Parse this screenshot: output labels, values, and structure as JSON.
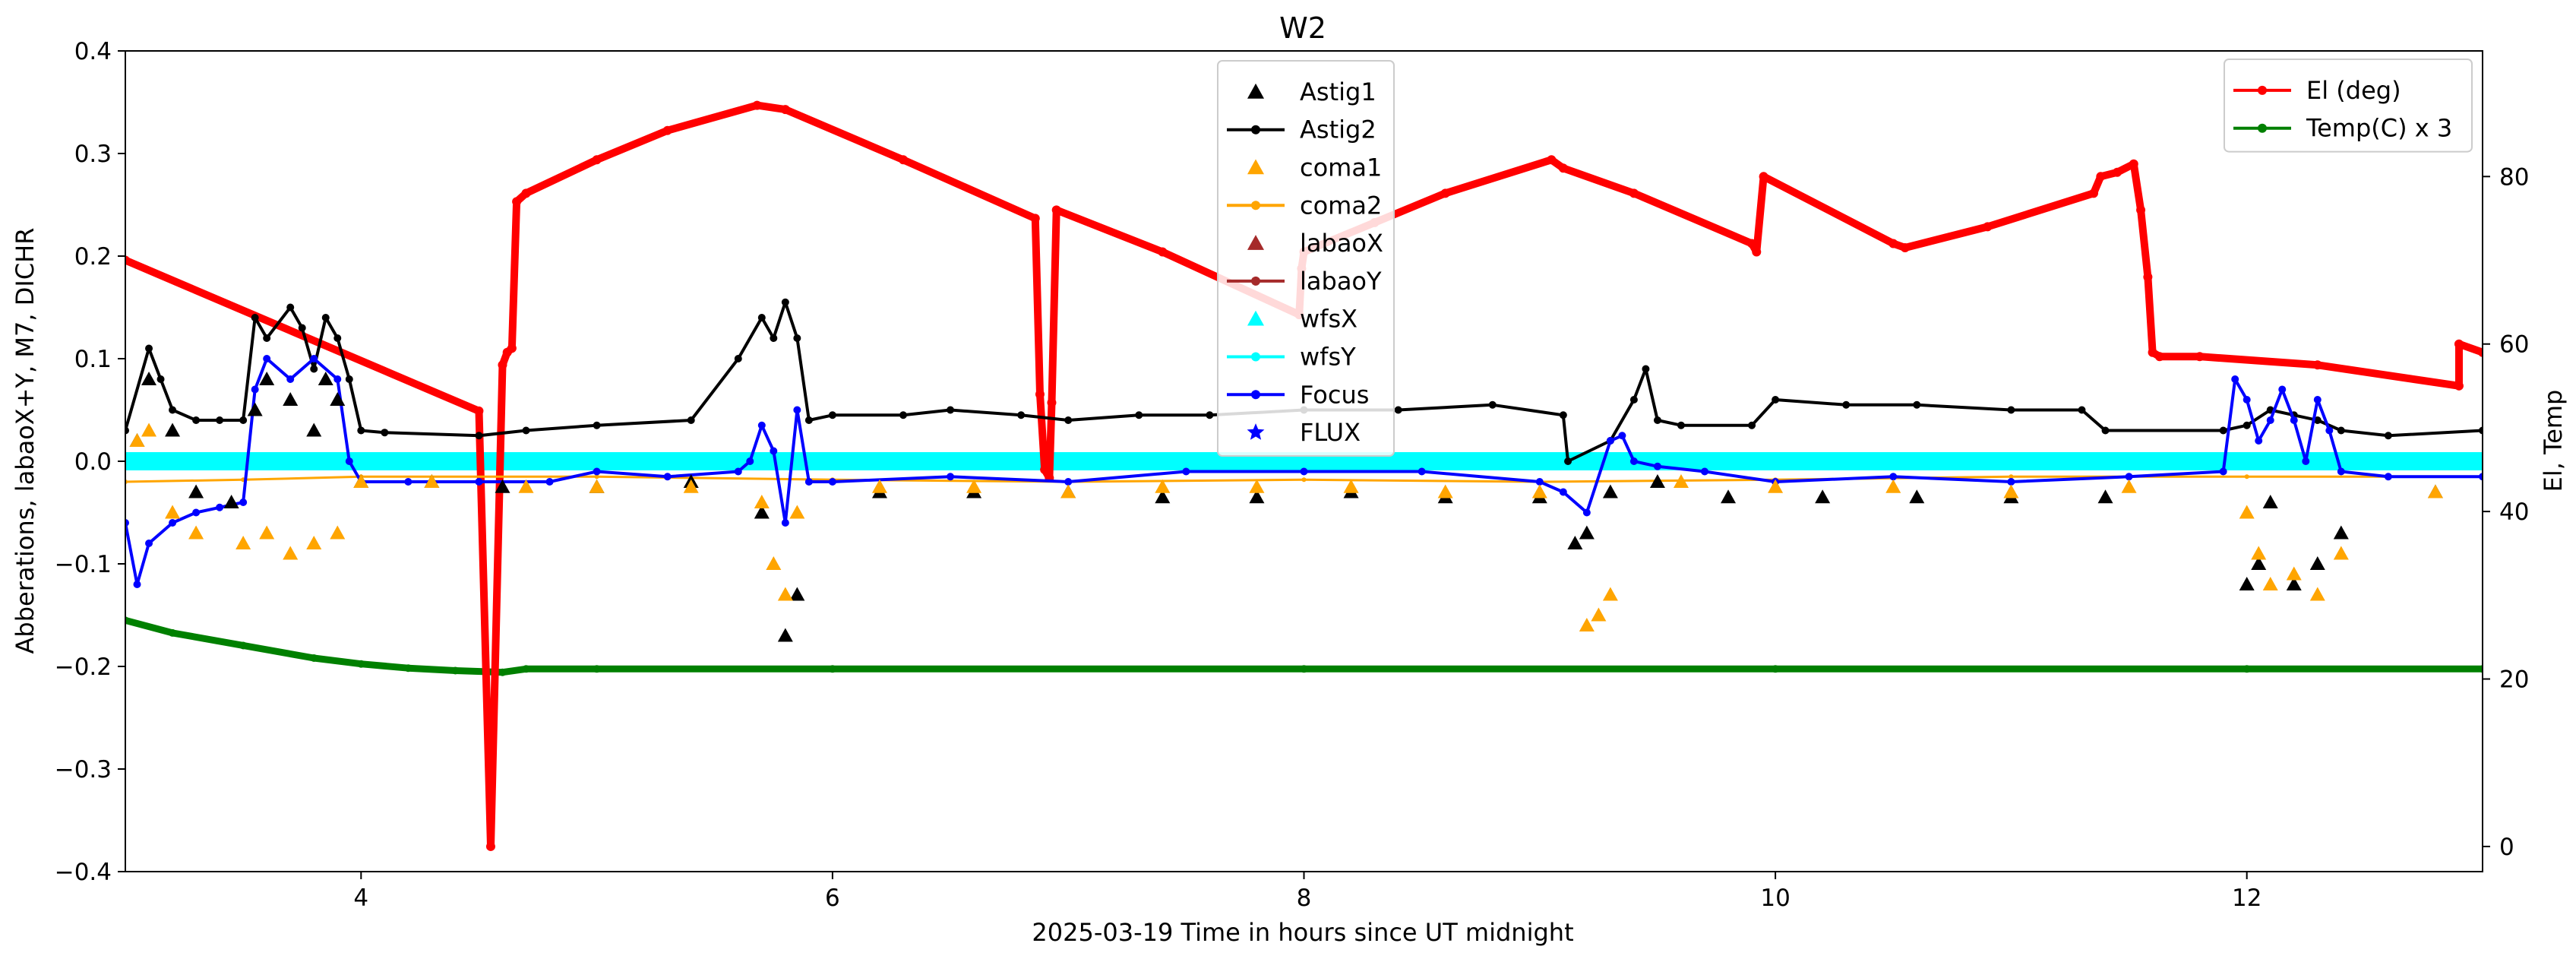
{
  "chart_data": {
    "type": "line",
    "title": "W2",
    "xlabel": "2025-03-19  Time in hours since UT midnight",
    "ylabel": "Abberations, labaoX+Y, M7, DICHR",
    "y2label": "El, Temp",
    "xlim": [
      3.0,
      13.0
    ],
    "ylim": [
      -0.4,
      0.4
    ],
    "y2lim": [
      -3,
      95
    ],
    "x_ticks": [
      "4",
      "6",
      "8",
      "10",
      "12"
    ],
    "y_ticks": [
      "0.4",
      "0.3",
      "0.2",
      "0.1",
      "0.0",
      "−0.1",
      "−0.2",
      "−0.3",
      "−0.4"
    ],
    "y2_ticks": [
      "80",
      "60",
      "40",
      "20",
      "0"
    ],
    "legend_left": {
      "placement": "top-center",
      "entries": [
        {
          "label": "Astig1",
          "color": "#000000",
          "marker": "triangle",
          "line": false
        },
        {
          "label": "Astig2",
          "color": "#000000",
          "marker": "dot",
          "line": true
        },
        {
          "label": "coma1",
          "color": "#ffa500",
          "marker": "triangle",
          "line": false
        },
        {
          "label": "coma2",
          "color": "#ffa500",
          "marker": "dot",
          "line": true
        },
        {
          "label": "labaoX",
          "color": "#a52a2a",
          "marker": "triangle",
          "line": false
        },
        {
          "label": "labaoY",
          "color": "#a52a2a",
          "marker": "dot",
          "line": true
        },
        {
          "label": "wfsX",
          "color": "#00ffff",
          "marker": "triangle",
          "line": false
        },
        {
          "label": "wfsY",
          "color": "#00ffff",
          "marker": "dot",
          "line": true
        },
        {
          "label": "Focus",
          "color": "#0000ff",
          "marker": "dot",
          "line": true
        },
        {
          "label": "FLUX",
          "color": "#0000ff",
          "marker": "star",
          "line": false
        }
      ]
    },
    "legend_right": {
      "placement": "top-right",
      "entries": [
        {
          "label": "El (deg)",
          "color": "#ff0000",
          "marker": "dot",
          "line": true
        },
        {
          "label": "Temp(C) x 3",
          "color": "#008000",
          "marker": "dot",
          "line": true
        }
      ]
    },
    "series": [
      {
        "name": "El (deg)",
        "axis": "right",
        "color": "#ff0000",
        "x": [
          3.0,
          4.5,
          4.55,
          4.6,
          4.62,
          4.64,
          4.66,
          4.7,
          5.0,
          5.3,
          5.68,
          5.8,
          6.3,
          6.86,
          6.88,
          6.9,
          6.92,
          6.93,
          6.95,
          7.4,
          7.98,
          7.99,
          8.0,
          8.3,
          8.6,
          9.05,
          9.1,
          9.4,
          9.9,
          9.92,
          9.95,
          10.5,
          10.55,
          10.9,
          11.35,
          11.38,
          11.45,
          11.52,
          11.55,
          11.58,
          11.6,
          11.63,
          11.8,
          12.3,
          12.9,
          12.9,
          13.0
        ],
        "y": [
          70.0,
          52.0,
          0.0,
          57.5,
          59.0,
          59.5,
          77.0,
          78.0,
          82.0,
          85.5,
          88.5,
          88.0,
          82.0,
          75.0,
          54.0,
          45.0,
          44.0,
          53.0,
          76.0,
          71.0,
          63.5,
          69.0,
          71.0,
          74.5,
          78.0,
          82.0,
          81.0,
          78.0,
          72.0,
          71.0,
          80.0,
          72.0,
          71.5,
          74.0,
          78.0,
          80.0,
          80.5,
          81.5,
          76.0,
          68.0,
          59.0,
          58.5,
          58.5,
          57.5,
          55.0,
          60.0,
          59.0
        ]
      },
      {
        "name": "Temp(C) x 3",
        "axis": "right",
        "color": "#008000",
        "x": [
          3.0,
          3.2,
          3.5,
          3.8,
          4.0,
          4.2,
          4.4,
          4.6,
          4.7,
          5.0,
          6.0,
          8.0,
          10.0,
          12.0,
          13.0
        ],
        "y": [
          27.0,
          25.5,
          24.0,
          22.5,
          21.8,
          21.3,
          21.0,
          20.8,
          21.2,
          21.2,
          21.2,
          21.2,
          21.2,
          21.2,
          21.2
        ]
      },
      {
        "name": "Astig2",
        "axis": "left",
        "color": "#000000",
        "x": [
          3.0,
          3.1,
          3.15,
          3.2,
          3.3,
          3.4,
          3.5,
          3.55,
          3.6,
          3.7,
          3.75,
          3.8,
          3.85,
          3.9,
          3.95,
          4.0,
          4.1,
          4.5,
          4.7,
          5.0,
          5.4,
          5.6,
          5.7,
          5.75,
          5.8,
          5.85,
          5.9,
          6.0,
          6.3,
          6.5,
          6.8,
          7.0,
          7.3,
          7.6,
          8.0,
          8.4,
          8.8,
          9.1,
          9.12,
          9.3,
          9.4,
          9.45,
          9.5,
          9.6,
          9.9,
          10.0,
          10.3,
          10.6,
          11.0,
          11.3,
          11.4,
          11.9,
          12.0,
          12.1,
          12.2,
          12.3,
          12.4,
          12.6,
          13.0
        ],
        "y": [
          0.03,
          0.11,
          0.08,
          0.05,
          0.04,
          0.04,
          0.04,
          0.14,
          0.12,
          0.15,
          0.13,
          0.09,
          0.14,
          0.12,
          0.08,
          0.03,
          0.028,
          0.025,
          0.03,
          0.035,
          0.04,
          0.1,
          0.14,
          0.12,
          0.155,
          0.12,
          0.04,
          0.045,
          0.045,
          0.05,
          0.045,
          0.04,
          0.045,
          0.045,
          0.05,
          0.05,
          0.055,
          0.045,
          0.0,
          0.02,
          0.06,
          0.09,
          0.04,
          0.035,
          0.035,
          0.06,
          0.055,
          0.055,
          0.05,
          0.05,
          0.03,
          0.03,
          0.035,
          0.05,
          0.045,
          0.04,
          0.03,
          0.025,
          0.03
        ]
      },
      {
        "name": "Focus",
        "axis": "left",
        "color": "#0000ff",
        "x": [
          3.0,
          3.05,
          3.1,
          3.2,
          3.3,
          3.4,
          3.5,
          3.55,
          3.6,
          3.7,
          3.8,
          3.9,
          3.95,
          4.0,
          4.2,
          4.5,
          4.8,
          5.0,
          5.3,
          5.6,
          5.65,
          5.7,
          5.75,
          5.8,
          5.85,
          5.9,
          6.0,
          6.5,
          7.0,
          7.5,
          8.0,
          8.5,
          9.0,
          9.1,
          9.2,
          9.3,
          9.35,
          9.4,
          9.5,
          9.7,
          10.0,
          10.5,
          11.0,
          11.5,
          11.9,
          11.95,
          12.0,
          12.05,
          12.1,
          12.15,
          12.2,
          12.25,
          12.3,
          12.35,
          12.4,
          12.6,
          13.0
        ],
        "y": [
          -0.06,
          -0.12,
          -0.08,
          -0.06,
          -0.05,
          -0.045,
          -0.04,
          0.07,
          0.1,
          0.08,
          0.1,
          0.08,
          0.0,
          -0.02,
          -0.02,
          -0.02,
          -0.02,
          -0.01,
          -0.015,
          -0.01,
          0.0,
          0.035,
          0.01,
          -0.06,
          0.05,
          -0.02,
          -0.02,
          -0.015,
          -0.02,
          -0.01,
          -0.01,
          -0.01,
          -0.02,
          -0.03,
          -0.05,
          0.02,
          0.025,
          0.0,
          -0.005,
          -0.01,
          -0.02,
          -0.015,
          -0.02,
          -0.015,
          -0.01,
          0.08,
          0.06,
          0.02,
          0.04,
          0.07,
          0.04,
          0.0,
          0.06,
          0.03,
          -0.01,
          -0.015,
          -0.015
        ]
      },
      {
        "name": "coma2",
        "axis": "left",
        "color": "#ffa500",
        "x": [
          3.0,
          3.5,
          4.0,
          5.0,
          6.0,
          7.0,
          8.0,
          9.0,
          10.0,
          11.0,
          12.0,
          13.0
        ],
        "y": [
          -0.02,
          -0.018,
          -0.015,
          -0.015,
          -0.018,
          -0.02,
          -0.018,
          -0.02,
          -0.018,
          -0.015,
          -0.015,
          -0.015
        ]
      },
      {
        "name": "Astig1",
        "axis": "left",
        "color": "#000000",
        "x": [
          3.05,
          3.1,
          3.2,
          3.3,
          3.45,
          3.55,
          3.6,
          3.7,
          3.8,
          3.85,
          3.9,
          4.0,
          4.3,
          4.6,
          5.0,
          5.4,
          5.7,
          5.8,
          5.85,
          6.2,
          6.6,
          7.0,
          7.4,
          7.8,
          8.2,
          8.6,
          9.0,
          9.15,
          9.2,
          9.3,
          9.5,
          9.8,
          10.2,
          10.6,
          11.0,
          11.4,
          12.0,
          12.05,
          12.1,
          12.2,
          12.3,
          12.4,
          12.8
        ],
        "y": [
          0.02,
          0.08,
          0.03,
          -0.03,
          -0.04,
          0.05,
          0.08,
          0.06,
          0.03,
          0.08,
          0.06,
          -0.02,
          -0.02,
          -0.025,
          -0.025,
          -0.02,
          -0.05,
          -0.17,
          -0.13,
          -0.03,
          -0.03,
          -0.03,
          -0.035,
          -0.035,
          -0.03,
          -0.035,
          -0.035,
          -0.08,
          -0.07,
          -0.03,
          -0.02,
          -0.035,
          -0.035,
          -0.035,
          -0.035,
          -0.035,
          -0.12,
          -0.1,
          -0.04,
          -0.12,
          -0.1,
          -0.07,
          -0.03
        ]
      },
      {
        "name": "coma1",
        "axis": "left",
        "color": "#ffa500",
        "x": [
          3.05,
          3.1,
          3.2,
          3.3,
          3.5,
          3.6,
          3.7,
          3.8,
          3.9,
          4.0,
          4.3,
          4.7,
          5.0,
          5.4,
          5.7,
          5.75,
          5.8,
          5.85,
          6.2,
          6.6,
          7.0,
          7.4,
          7.8,
          8.2,
          8.6,
          9.0,
          9.2,
          9.25,
          9.3,
          9.6,
          10.0,
          10.5,
          11.0,
          11.5,
          12.0,
          12.05,
          12.1,
          12.2,
          12.3,
          12.4,
          12.8
        ],
        "y": [
          0.02,
          0.03,
          -0.05,
          -0.07,
          -0.08,
          -0.07,
          -0.09,
          -0.08,
          -0.07,
          -0.02,
          -0.02,
          -0.025,
          -0.025,
          -0.025,
          -0.04,
          -0.1,
          -0.13,
          -0.05,
          -0.025,
          -0.025,
          -0.03,
          -0.025,
          -0.025,
          -0.025,
          -0.03,
          -0.03,
          -0.16,
          -0.15,
          -0.13,
          -0.02,
          -0.025,
          -0.025,
          -0.03,
          -0.025,
          -0.05,
          -0.09,
          -0.12,
          -0.11,
          -0.13,
          -0.09,
          -0.03
        ]
      },
      {
        "name": "wfsY",
        "axis": "left",
        "color": "#00ffff",
        "x": [
          3.0,
          13.0
        ],
        "y": [
          0.0,
          0.0
        ]
      }
    ]
  }
}
